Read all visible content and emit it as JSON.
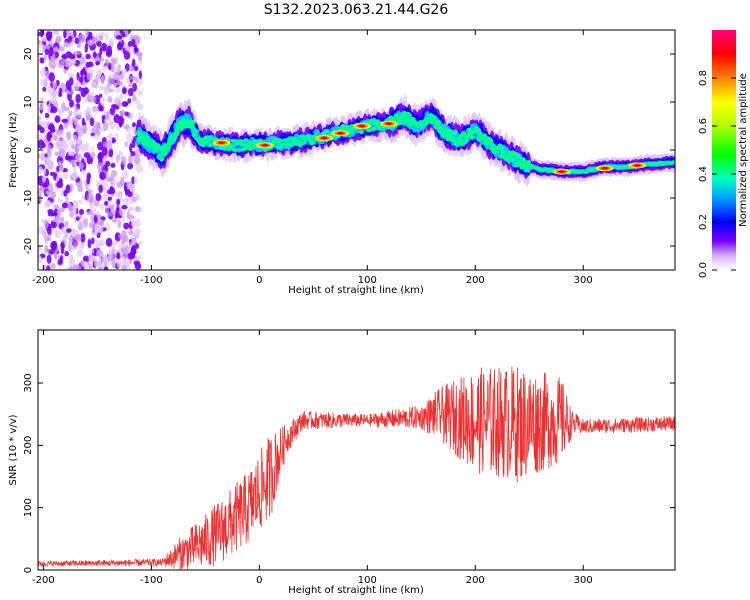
{
  "title": "S132.2023.063.21.44.G26",
  "colors": {
    "snr_line": "#f03030",
    "colormap": [
      "#ffffff",
      "#c890f0",
      "#7a00ff",
      "#0000ff",
      "#00c8ff",
      "#00ff80",
      "#80ff00",
      "#ffff00",
      "#ff8000",
      "#ff0000",
      "#ff0080"
    ]
  },
  "chart_data": [
    {
      "type": "heatmap",
      "xlabel": "Height of straight line (km)",
      "ylabel": "Frequency (Hz)",
      "xlim": [
        -205,
        385
      ],
      "ylim": [
        -25,
        25
      ],
      "xticks": [
        -200,
        -100,
        0,
        100,
        200,
        300
      ],
      "yticks": [
        -20,
        -10,
        0,
        10,
        20
      ],
      "ridge": {
        "x": [
          -110,
          -90,
          -75,
          -65,
          -55,
          -40,
          -20,
          0,
          20,
          40,
          60,
          80,
          100,
          120,
          135,
          145,
          160,
          170,
          185,
          200,
          215,
          230,
          245,
          260,
          280,
          300,
          320,
          340,
          360,
          385
        ],
        "y": [
          3,
          -1,
          5,
          6,
          2,
          1.5,
          1,
          1,
          1.5,
          2,
          3,
          4,
          5,
          5.5,
          7,
          5,
          7,
          4,
          2,
          4,
          1,
          -1,
          -3,
          -4,
          -4.5,
          -4.5,
          -3.5,
          -3.5,
          -3,
          -2.5
        ]
      },
      "colorbar": {
        "label": "Normalized spectral amplitude",
        "ticks": [
          "0.0",
          "0.2",
          "0.4",
          "0.6",
          "0.8"
        ],
        "range": [
          0,
          1
        ]
      }
    },
    {
      "type": "line",
      "xlabel": "Height of straight line (km)",
      "ylabel": "SNR (10 * v/v)",
      "xlim": [
        -205,
        385
      ],
      "ylim": [
        0,
        385
      ],
      "xticks": [
        -200,
        -100,
        0,
        100,
        200,
        300
      ],
      "yticks": [
        0,
        100,
        200,
        300
      ],
      "envelope": [
        {
          "x": -205,
          "center": 10,
          "spread": 4
        },
        {
          "x": -90,
          "center": 12,
          "spread": 6
        },
        {
          "x": -75,
          "center": 25,
          "spread": 25
        },
        {
          "x": -50,
          "center": 45,
          "spread": 45
        },
        {
          "x": -30,
          "center": 70,
          "spread": 55
        },
        {
          "x": -10,
          "center": 100,
          "spread": 60
        },
        {
          "x": 10,
          "center": 150,
          "spread": 70
        },
        {
          "x": 25,
          "center": 210,
          "spread": 25
        },
        {
          "x": 40,
          "center": 240,
          "spread": 15
        },
        {
          "x": 100,
          "center": 240,
          "spread": 10
        },
        {
          "x": 150,
          "center": 245,
          "spread": 20
        },
        {
          "x": 165,
          "center": 250,
          "spread": 40
        },
        {
          "x": 200,
          "center": 240,
          "spread": 85
        },
        {
          "x": 240,
          "center": 235,
          "spread": 95
        },
        {
          "x": 280,
          "center": 240,
          "spread": 70
        },
        {
          "x": 290,
          "center": 235,
          "spread": 20
        },
        {
          "x": 300,
          "center": 230,
          "spread": 12
        },
        {
          "x": 385,
          "center": 235,
          "spread": 12
        }
      ]
    }
  ]
}
